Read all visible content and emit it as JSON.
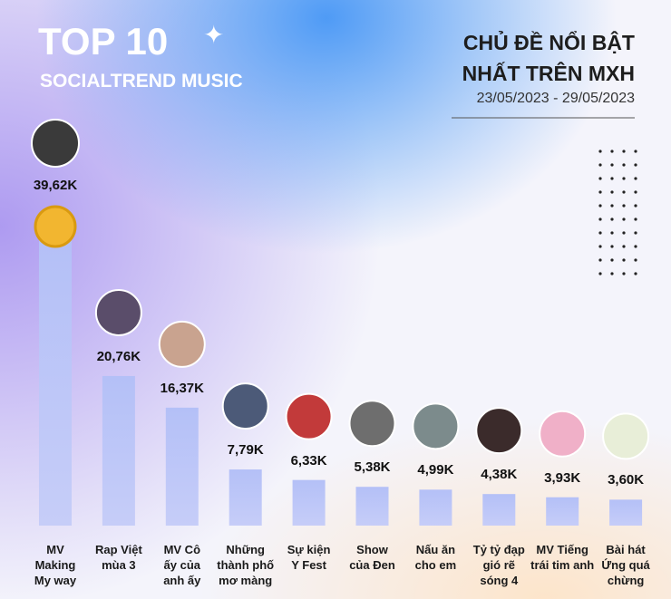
{
  "chart_data": {
    "type": "bar",
    "title": "TOP 10",
    "subtitle": "SOCIALTREND MUSIC",
    "heading": "CHỦ ĐỀ NỔI BẬT\nNHẤT TRÊN MXH",
    "date_range": "23/05/2023 - 29/05/2023",
    "categories": [
      "MV\nMaking\nMy way",
      "Rap Việt\nmùa 3",
      "MV Cô\nấy của\nanh ấy",
      "Những\nthành phố\nmơ màng",
      "Sự kiện\nY Fest",
      "Show\ncủa Đen",
      "Nấu ăn\ncho em",
      "Tỷ tỷ đạp\ngió rẽ\nsóng 4",
      "MV Tiếng\ntrái tim anh",
      "Bài hát\nỨng quá\nchừng"
    ],
    "values": [
      39.62,
      20.76,
      16.37,
      7.79,
      6.33,
      5.38,
      4.99,
      4.38,
      3.93,
      3.6
    ],
    "value_labels": [
      "39,62K",
      "20,76K",
      "16,37K",
      "7,79K",
      "6,33K",
      "5,38K",
      "4,99K",
      "4,38K",
      "3,93K",
      "3,60K"
    ],
    "color": "#b4c0f7"
  }
}
